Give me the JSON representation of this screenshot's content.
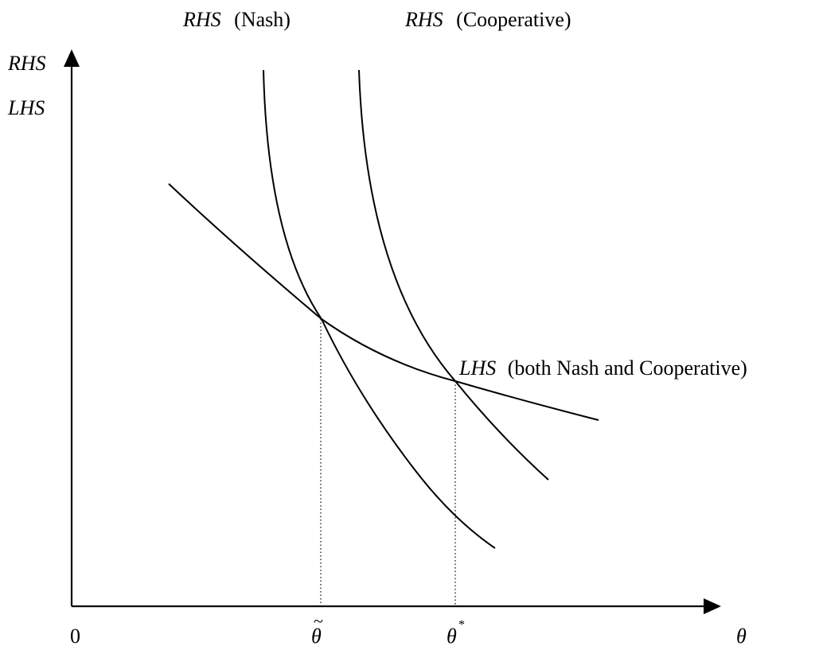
{
  "diagram": {
    "curve_labels": {
      "rhs_nash": {
        "name": "RHS",
        "qualifier": "(Nash)"
      },
      "rhs_cooperative": {
        "name": "RHS",
        "qualifier": "(Cooperative)"
      },
      "lhs_both": {
        "name": "LHS",
        "qualifier": "(both Nash and Cooperative)"
      }
    },
    "y_axis_labels": [
      "RHS",
      "LHS"
    ],
    "x_axis_labels": {
      "origin": "0",
      "theta_tilde": "θ",
      "theta_tilde_accent": "~",
      "theta_star": "θ",
      "theta_star_superscript": "*",
      "theta": "θ"
    }
  }
}
